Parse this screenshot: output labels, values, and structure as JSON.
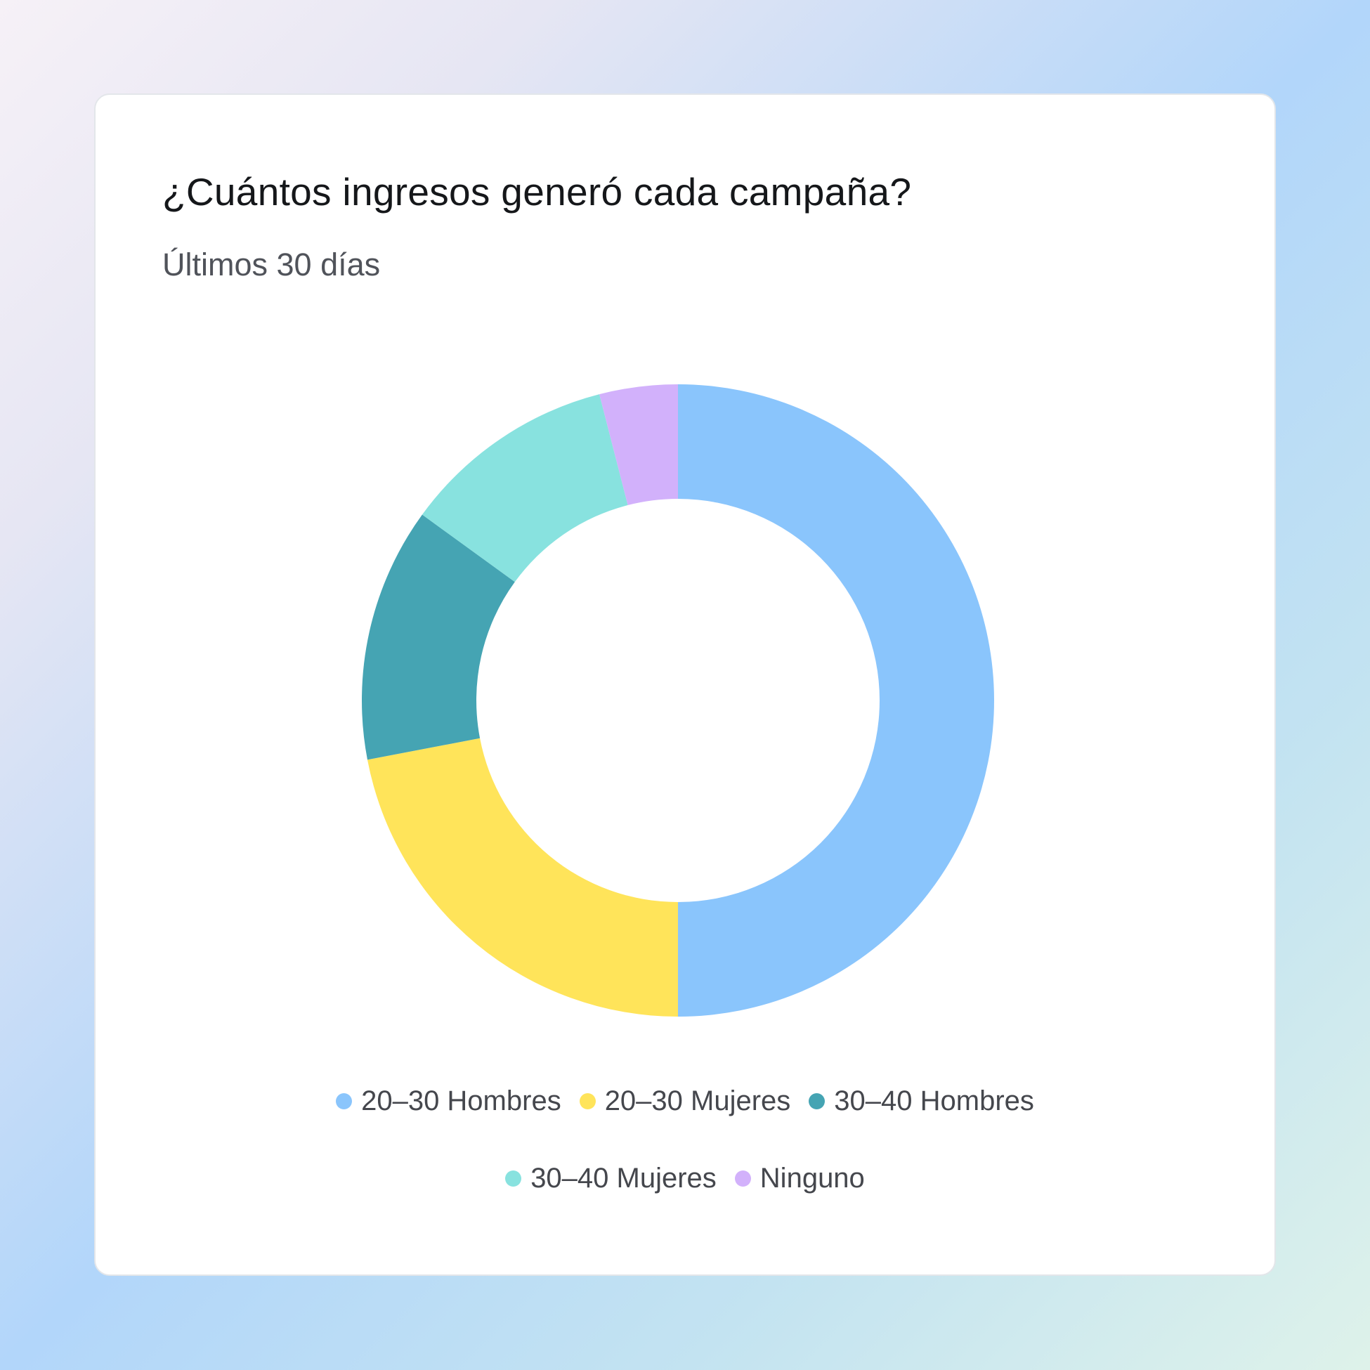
{
  "title": "¿Cuántos ingresos generó cada campaña?",
  "subtitle": "Últimos 30 días",
  "chart_data": {
    "type": "pie",
    "variant": "donut",
    "categories": [
      "20–30 Hombres",
      "20–30 Mujeres",
      "30–40 Hombres",
      "30–40 Mujeres",
      "Ninguno"
    ],
    "values": [
      50,
      22,
      13,
      11,
      4
    ],
    "unit": "percent (estimated)",
    "colors": [
      "#8ac5fc",
      "#ffe45a",
      "#45a4b3",
      "#88e2df",
      "#d2b1fb"
    ],
    "legend_placement": "bottom"
  }
}
